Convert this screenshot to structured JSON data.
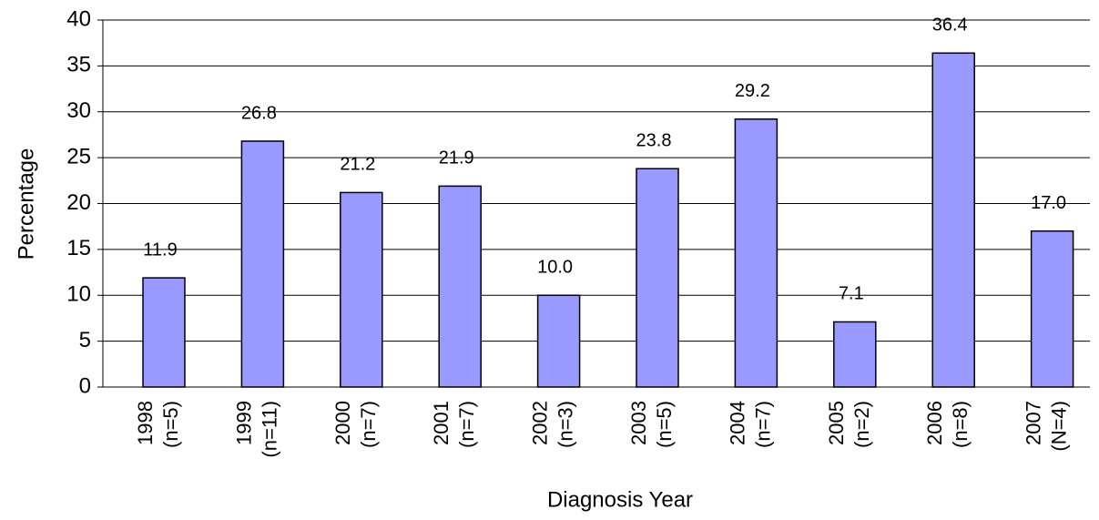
{
  "chart_data": {
    "type": "bar",
    "x_label": "Diagnosis Year",
    "y_label": "Percentage",
    "categories": [
      "1998\n(n=5)",
      "1999\n(n=11)",
      "2000\n(n=7)",
      "2001\n(n=7)",
      "2002\n(n=3)",
      "2003\n(n=5)",
      "2004\n(n=7)",
      "2005\n(n=2)",
      "2006\n(n=8)",
      "2007\n(N=4)"
    ],
    "values": [
      11.9,
      26.8,
      21.2,
      21.9,
      10.0,
      23.8,
      29.2,
      7.1,
      36.4,
      17.0
    ],
    "value_labels": [
      "11.9",
      "26.8",
      "21.2",
      "21.9",
      "10.0",
      "23.8",
      "29.2",
      "7.1",
      "36.4",
      "17.0"
    ],
    "color": "#9999ff",
    "ylim": [
      0,
      40
    ],
    "yticks": [
      0,
      5,
      10,
      15,
      20,
      25,
      30,
      35,
      40
    ],
    "grid": true
  }
}
